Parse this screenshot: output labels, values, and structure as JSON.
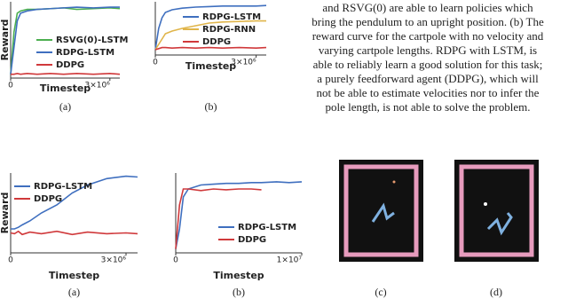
{
  "chart_data": [
    {
      "type": "line",
      "ylabel": "Reward",
      "xlabel": "Timestep",
      "caption": "(a)",
      "legend": "lower right",
      "xlim": [
        0,
        3300000
      ],
      "ylim": [
        0,
        1
      ],
      "xticks": [
        0,
        {
          "value": 3000000,
          "label": "3×10⁶"
        }
      ],
      "x": [
        0,
        100000,
        200000,
        300000,
        500000,
        800000,
        1200000,
        1600000,
        2000000,
        2500000,
        3000000,
        3300000
      ],
      "series": [
        {
          "name": "RSVG(0)-LSTM",
          "color": "#4caf50",
          "values": [
            0.05,
            0.6,
            0.85,
            0.88,
            0.9,
            0.9,
            0.91,
            0.92,
            0.9,
            0.91,
            0.92,
            0.91
          ]
        },
        {
          "name": "RDPG-LSTM",
          "color": "#3f6fbf",
          "values": [
            0.05,
            0.4,
            0.75,
            0.85,
            0.88,
            0.9,
            0.91,
            0.92,
            0.93,
            0.92,
            0.93,
            0.93
          ]
        },
        {
          "name": "DDPG",
          "color": "#d0393b",
          "values": [
            0.05,
            0.05,
            0.06,
            0.05,
            0.06,
            0.05,
            0.06,
            0.05,
            0.06,
            0.05,
            0.06,
            0.05
          ]
        }
      ]
    },
    {
      "type": "line",
      "xlabel": "Timestep",
      "caption": "(b)",
      "legend": "lower right",
      "xlim": [
        0,
        3300000
      ],
      "ylim": [
        0,
        1
      ],
      "xticks": [
        0,
        {
          "value": 3000000,
          "label": "3×10⁶"
        }
      ],
      "x": [
        0,
        100000,
        200000,
        300000,
        500000,
        800000,
        1200000,
        1600000,
        2000000,
        2500000,
        3000000,
        3300000
      ],
      "series": [
        {
          "name": "RDPG-LSTM",
          "color": "#3f6fbf",
          "values": [
            0.1,
            0.5,
            0.7,
            0.8,
            0.85,
            0.88,
            0.9,
            0.91,
            0.92,
            0.92,
            0.92,
            0.93
          ]
        },
        {
          "name": "RDPG-RNN",
          "color": "#e0b54a",
          "values": [
            0.1,
            0.2,
            0.3,
            0.4,
            0.45,
            0.5,
            0.55,
            0.6,
            0.62,
            0.63,
            0.64,
            0.64
          ]
        },
        {
          "name": "DDPG",
          "color": "#d0393b",
          "values": [
            0.1,
            0.12,
            0.14,
            0.14,
            0.13,
            0.14,
            0.13,
            0.14,
            0.13,
            0.14,
            0.13,
            0.14
          ]
        }
      ]
    },
    {
      "type": "line",
      "ylabel": "Reward",
      "xlabel": "Timestep",
      "caption": "(a)",
      "legend": "upper left",
      "xlim": [
        0,
        3300000
      ],
      "ylim": [
        0,
        1
      ],
      "xticks": [
        0,
        {
          "value": 3000000,
          "label": "3×10⁶"
        }
      ],
      "x": [
        0,
        100000,
        200000,
        300000,
        500000,
        800000,
        1200000,
        1600000,
        2000000,
        2500000,
        3000000,
        3300000
      ],
      "series": [
        {
          "name": "RDPG-LSTM",
          "color": "#3f6fbf",
          "values": [
            0.3,
            0.3,
            0.32,
            0.35,
            0.4,
            0.5,
            0.6,
            0.75,
            0.85,
            0.93,
            0.96,
            0.95
          ]
        },
        {
          "name": "DDPG",
          "color": "#d0393b",
          "values": [
            0.25,
            0.24,
            0.27,
            0.23,
            0.26,
            0.24,
            0.27,
            0.23,
            0.26,
            0.24,
            0.25,
            0.24
          ]
        }
      ]
    },
    {
      "type": "line",
      "xlabel": "Timestep",
      "caption": "(b)",
      "legend": "lower right",
      "xlim": [
        0,
        10000000
      ],
      "ylim": [
        0,
        1
      ],
      "xticks": [
        0,
        {
          "value": 10000000,
          "label": "1×10⁷"
        }
      ],
      "x": [
        0,
        300000,
        600000,
        1000000,
        2000000,
        3000000,
        4000000,
        5000000,
        6000000,
        6800000,
        8000000,
        9000000,
        10000000
      ],
      "series": [
        {
          "name": "RDPG-LSTM",
          "color": "#3f6fbf",
          "values": [
            0.05,
            0.3,
            0.7,
            0.8,
            0.85,
            0.86,
            0.87,
            0.87,
            0.88,
            0.88,
            0.89,
            0.88,
            0.89
          ]
        },
        {
          "name": "DDPG",
          "color": "#d0393b",
          "values": [
            0.05,
            0.6,
            0.8,
            0.8,
            0.78,
            0.8,
            0.79,
            0.8,
            0.8,
            0.79,
            null,
            null,
            null
          ]
        }
      ]
    }
  ],
  "paragraph": [
    "and RSVG(0) are able to learn policies which",
    "bring the pendulum to an upright position. (b) The",
    "reward curve for the cartpole with no velocity and",
    "varying cartpole lengths. RDPG with LSTM, is",
    "able to reliably learn a good solution for this task;",
    "a purely feedforward agent (DDPG), which will",
    "not be able to estimate velocities nor to infer the",
    "pole length, is not able to solve the problem."
  ],
  "images": [
    {
      "caption": "(c)"
    },
    {
      "caption": "(d)"
    }
  ]
}
